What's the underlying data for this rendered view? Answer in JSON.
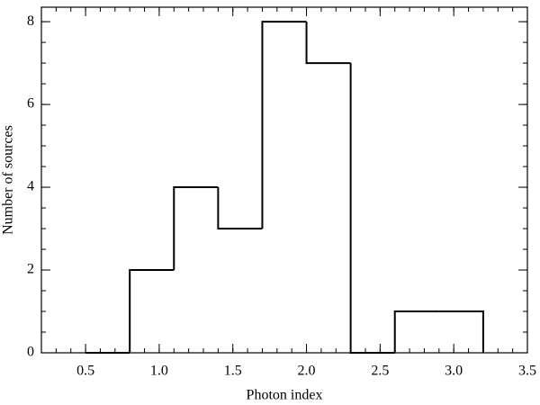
{
  "chart_data": {
    "type": "histogram",
    "xlabel": "Photon index",
    "ylabel": "Number of sources",
    "bins": [
      0.5,
      0.8,
      1.1,
      1.4,
      1.7,
      2.0,
      2.3,
      2.6,
      2.9,
      3.2
    ],
    "values": [
      0,
      2,
      4,
      3,
      8,
      7,
      0,
      1,
      1
    ],
    "color": "#000000",
    "xlim": [
      0.2,
      3.5
    ],
    "xticks": [
      {
        "value": 0.5,
        "label": "0.5"
      },
      {
        "value": 1.0,
        "label": "1.0"
      },
      {
        "value": 1.5,
        "label": "1.5"
      },
      {
        "value": 2.0,
        "label": "2.0"
      },
      {
        "value": 2.5,
        "label": "2.5"
      },
      {
        "value": 3.0,
        "label": "3.0"
      },
      {
        "value": 3.5,
        "label": "3.5"
      }
    ],
    "ylim": [
      0,
      8.35
    ],
    "yticks": [
      0,
      2,
      4,
      6,
      8
    ]
  }
}
